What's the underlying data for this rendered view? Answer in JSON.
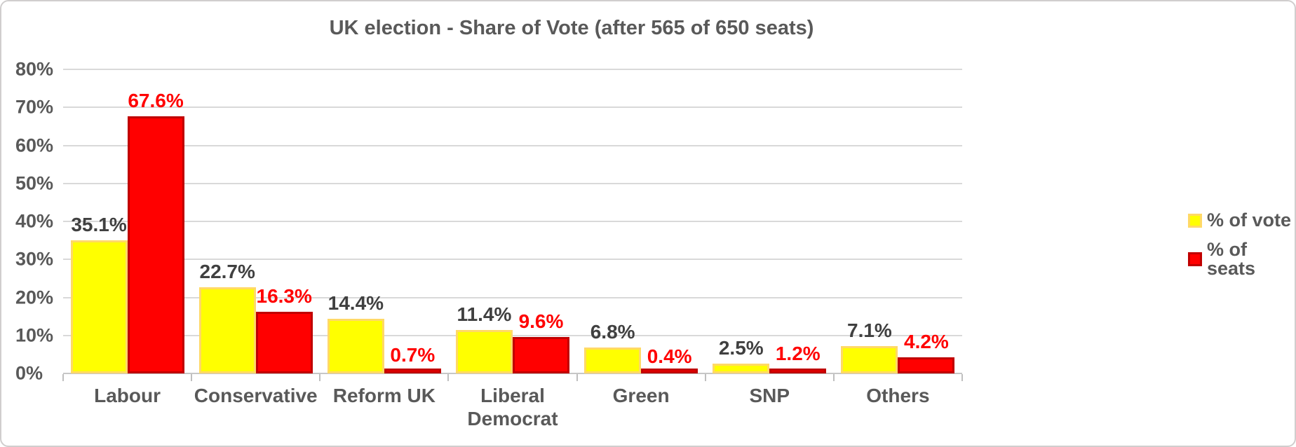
{
  "chart_data": {
    "type": "bar",
    "title": "UK election - Share of Vote (after 565 of 650 seats)",
    "categories": [
      "Labour",
      "Conservative",
      "Reform UK",
      "Liberal Democrat",
      "Green",
      "SNP",
      "Others"
    ],
    "series": [
      {
        "name": "% of vote",
        "values": [
          35.1,
          22.7,
          14.4,
          11.4,
          6.8,
          2.5,
          7.1
        ],
        "value_labels": [
          "35.1%",
          "22.7%",
          "14.4%",
          "11.4%",
          "6.8%",
          "2.5%",
          "7.1%"
        ],
        "fill_color": "#FFFF00",
        "border_color": "#FFD966",
        "label_color": "#404040"
      },
      {
        "name": "% of seats",
        "values": [
          67.6,
          16.3,
          0.7,
          9.6,
          0.4,
          1.2,
          4.2
        ],
        "value_labels": [
          "67.6%",
          "16.3%",
          "0.7%",
          "9.6%",
          "0.4%",
          "1.2%",
          "4.2%"
        ],
        "fill_color": "#FF0000",
        "border_color": "#C00000",
        "label_color": "#FF0000"
      }
    ],
    "ylim": [
      0,
      80
    ],
    "ytick_step": 10,
    "ytick_labels": [
      "0%",
      "10%",
      "20%",
      "30%",
      "40%",
      "50%",
      "60%",
      "70%",
      "80%"
    ],
    "grid": true,
    "legend_position": "right"
  },
  "palette": {
    "background": "#FFFFFF",
    "frame_border": "#D0CECE",
    "title_text": "#595959",
    "axis_text": "#595959",
    "dark_label_text": "#404040",
    "red_label_text": "#FF0000",
    "gridline": "#D9D9D9",
    "axis_line": "#C6C6C6",
    "tick": "#BFBFBF"
  }
}
